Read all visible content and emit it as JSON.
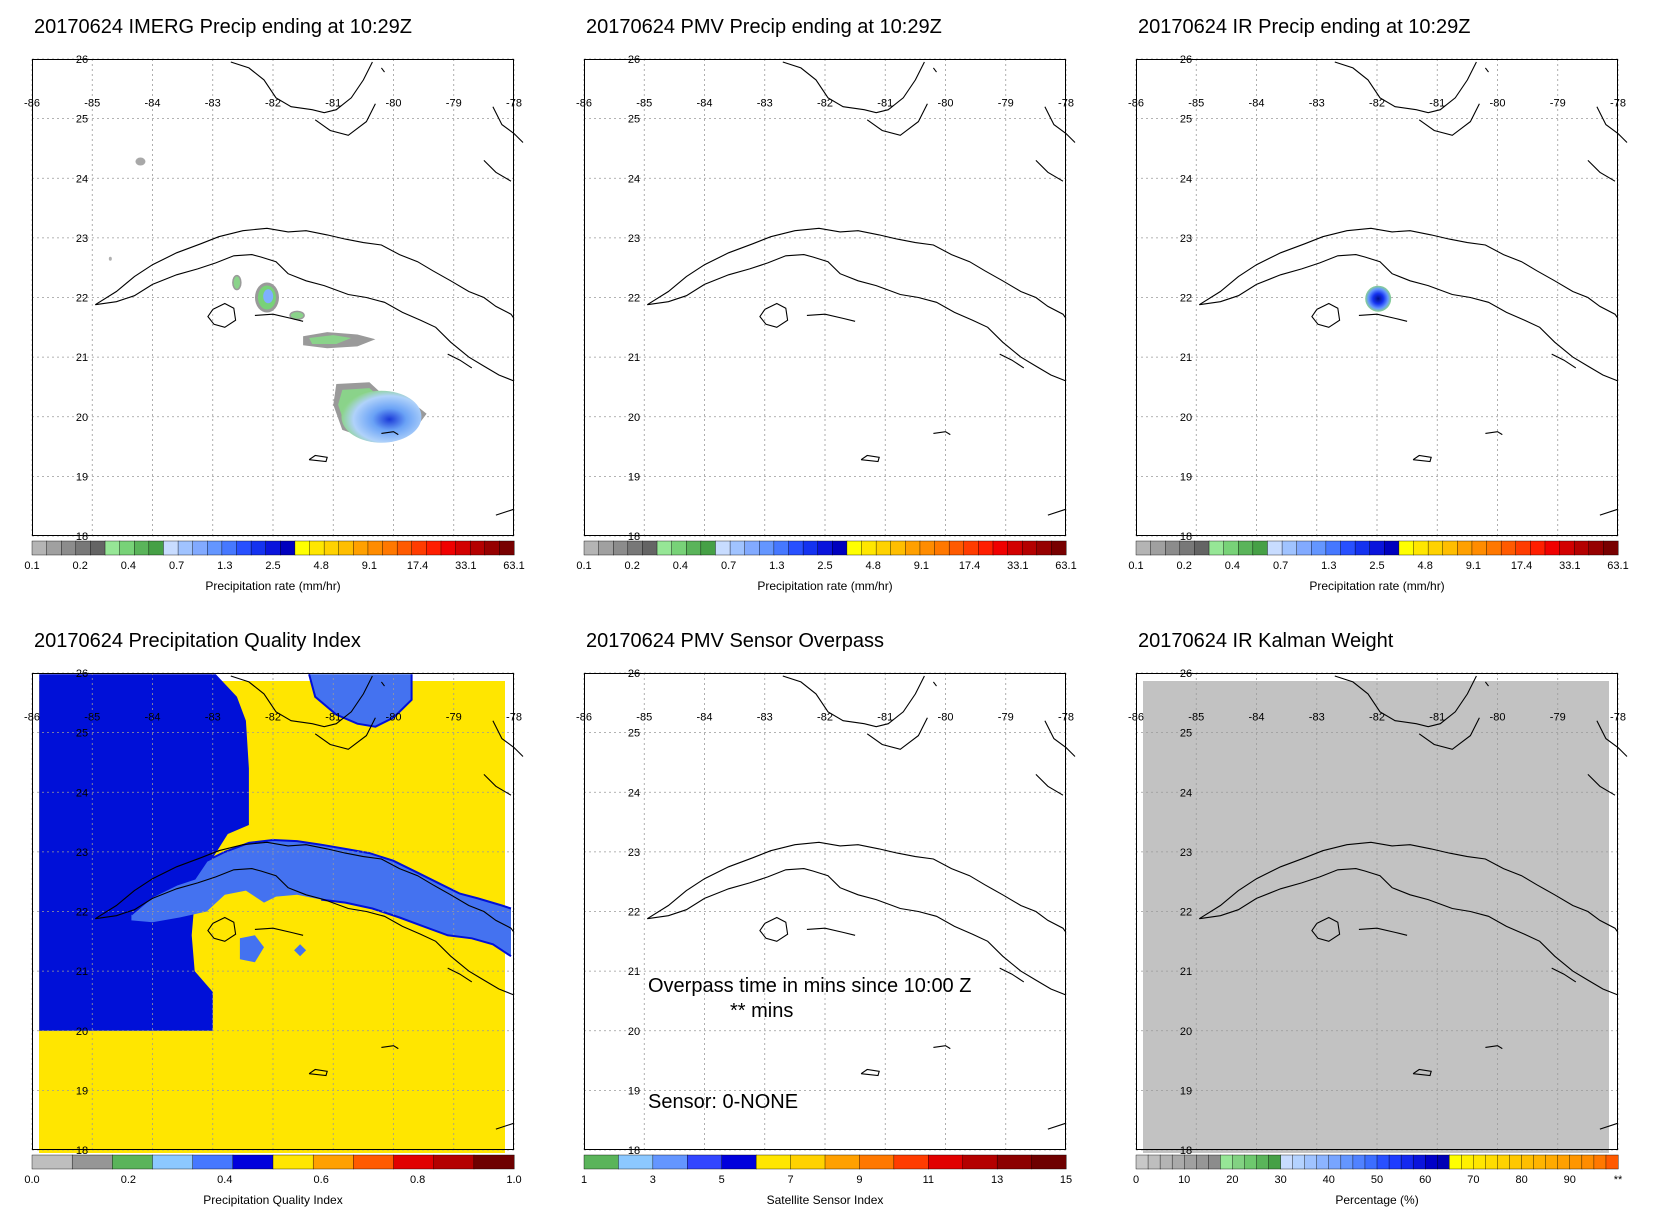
{
  "panels": [
    {
      "title": "20170624 IMERG Precip ending at 10:29Z",
      "map": "imerg",
      "colorbar": "precip"
    },
    {
      "title": "20170624 PMV Precip ending at 10:29Z",
      "map": "blank",
      "colorbar": "precip"
    },
    {
      "title": "20170624 IR Precip ending at 10:29Z",
      "map": "ir",
      "colorbar": "precip"
    },
    {
      "title": "20170624 Precipitation Quality Index",
      "map": "quality",
      "colorbar": "quality"
    },
    {
      "title": "20170624 PMV Sensor Overpass",
      "map": "blank",
      "colorbar": "sensor"
    },
    {
      "title": "20170624 IR Kalman Weight",
      "map": "kalman",
      "colorbar": "percent"
    }
  ],
  "map_axes": {
    "lon_labels": [
      "-86",
      "-85",
      "-84",
      "-83",
      "-82",
      "-81",
      "-80",
      "-79",
      "-78"
    ],
    "lat_labels": [
      "26",
      "25",
      "24",
      "23",
      "22",
      "21",
      "20",
      "19",
      "18"
    ]
  },
  "colorbars": {
    "precip": {
      "colors": [
        "#b4b4b4",
        "#a0a0a0",
        "#8c8c8c",
        "#787878",
        "#646464",
        "#96e696",
        "#78d278",
        "#5ab45a",
        "#46a046",
        "#c8dcff",
        "#a0c3ff",
        "#82aaff",
        "#6496ff",
        "#4678ff",
        "#2850ff",
        "#1432f0",
        "#0a14dc",
        "#0000be",
        "#ffff00",
        "#ffe600",
        "#ffd200",
        "#ffbe00",
        "#ffa000",
        "#ff8c00",
        "#ff7800",
        "#ff5a00",
        "#ff3c00",
        "#ff1e00",
        "#f00000",
        "#d20000",
        "#b40000",
        "#960000",
        "#780000"
      ],
      "labels": [
        "0.1",
        "0.2",
        "0.4",
        "0.7",
        "1.3",
        "2.5",
        "4.8",
        "9.1",
        "17.4",
        "33.1",
        "63.1"
      ],
      "caption": "Precipitation rate (mm/hr)"
    },
    "quality": {
      "colors": [
        "#bebebe",
        "#969696",
        "#5ab45a",
        "#8cc8ff",
        "#4678ff",
        "#0000dc",
        "#ffe600",
        "#ffa000",
        "#ff5a00",
        "#e10000",
        "#b40000",
        "#6e0000"
      ],
      "labels": [
        "0.0",
        "0.2",
        "0.4",
        "0.6",
        "0.8",
        "1.0"
      ],
      "caption": "Precipitation Quality Index"
    },
    "sensor": {
      "colors": [
        "#5ab45a",
        "#8cc8ff",
        "#6496ff",
        "#3246ff",
        "#0000dc",
        "#ffe600",
        "#ffd200",
        "#ffa000",
        "#ff7800",
        "#ff3c00",
        "#e10000",
        "#b40000",
        "#8c0000",
        "#6e0000"
      ],
      "labels": [
        "1",
        "3",
        "5",
        "7",
        "9",
        "11",
        "13",
        "15"
      ],
      "caption": "Satellite Sensor Index"
    },
    "percent": {
      "colors": [
        "#c8c8c8",
        "#bebebe",
        "#b4b4b4",
        "#aaaaaa",
        "#a0a0a0",
        "#969696",
        "#8c8c8c",
        "#96e696",
        "#82d282",
        "#6ec86e",
        "#5ab45a",
        "#46a046",
        "#c8dcff",
        "#b4d2ff",
        "#a0c3ff",
        "#8cb4ff",
        "#78a5ff",
        "#6496ff",
        "#5082ff",
        "#3c6eff",
        "#2850ff",
        "#1e3cff",
        "#1428f0",
        "#0a14dc",
        "#0000c8",
        "#0000b4",
        "#ffff00",
        "#fff000",
        "#ffe600",
        "#ffdc00",
        "#ffd200",
        "#ffc800",
        "#ffbe00",
        "#ffb400",
        "#ffaa00",
        "#ffa000",
        "#ff9600",
        "#ff8c00",
        "#ff7800",
        "#ff5a00"
      ],
      "labels": [
        "0",
        "10",
        "20",
        "30",
        "40",
        "50",
        "60",
        "70",
        "80",
        "90",
        "**"
      ],
      "caption": "Percentage (%)"
    }
  },
  "overpass": {
    "line1": "Overpass time in mins since 10:00 Z",
    "line2": "** mins",
    "line3": "Sensor:   0-NONE"
  }
}
